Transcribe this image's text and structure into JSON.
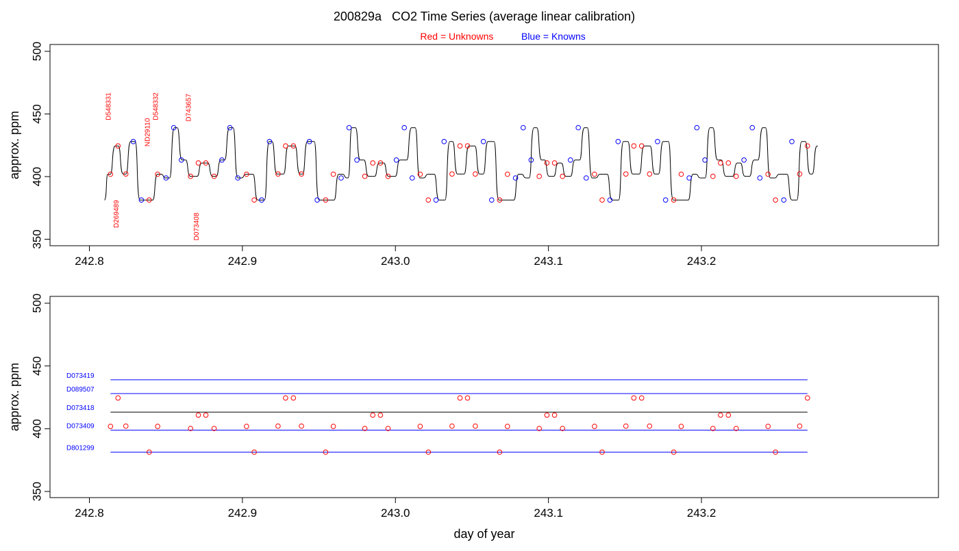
{
  "figure": {
    "title": "200829a   CO2 Time Series (average linear calibration)",
    "legend": {
      "red_word": "Red",
      "red_rest": " = Unknowns",
      "blue_word": "Blue",
      "blue_rest": " = Knowns",
      "placement": "top-center"
    },
    "xlabel": "day of year",
    "colors": {
      "unknown": "#ff0000",
      "known": "#0000ff",
      "trace": "#000000",
      "frame": "#000000"
    }
  },
  "chart_data": [
    {
      "type": "line",
      "panel": "top",
      "ylabel": "approx. ppm",
      "xlim": [
        242.8,
        243.25
      ],
      "ylim": [
        350,
        500
      ],
      "x_ticks": [
        "242.8",
        "242.9",
        "243.0",
        "243.1",
        "243.2"
      ],
      "y_ticks": [
        "350",
        "400",
        "450",
        "500"
      ],
      "grid": false,
      "series": [
        {
          "role": "trace",
          "color": "#000000",
          "segments": [
            [
              242.8098,
              381.3
            ],
            [
              242.8125,
              401.9
            ],
            [
              242.8173,
              424.5
            ],
            [
              242.8225,
              402.1
            ],
            [
              242.8275,
              428.0
            ],
            [
              242.8335,
              381.3
            ],
            [
              242.841,
              381.3
            ],
            [
              242.845,
              401.9
            ],
            [
              242.8505,
              398.9
            ],
            [
              242.856,
              439.0
            ],
            [
              242.861,
              413.2
            ],
            [
              242.8665,
              400.2
            ],
            [
              242.874,
              410.9
            ],
            [
              242.881,
              400.2
            ],
            [
              242.8865,
              413.2
            ],
            [
              242.892,
              439.0
            ],
            [
              242.8975,
              398.9
            ],
            [
              242.903,
              401.9
            ],
            [
              242.9105,
              381.3
            ],
            [
              242.918,
              428.0
            ],
            [
              242.923,
              402.1
            ],
            [
              242.9305,
              424.5
            ],
            [
              242.938,
              402.1
            ],
            [
              242.943,
              428.0
            ],
            [
              242.9505,
              381.3
            ],
            [
              242.958,
              381.3
            ],
            [
              242.9635,
              401.9
            ],
            [
              242.969,
              398.9
            ],
            [
              242.972,
              439.0
            ],
            [
              242.9775,
              413.2
            ],
            [
              242.983,
              400.2
            ],
            [
              242.99,
              410.9
            ],
            [
              242.996,
              400.2
            ],
            [
              243.0035,
              413.2
            ],
            [
              243.011,
              439.0
            ],
            [
              243.0165,
              398.9
            ],
            [
              243.022,
              401.9
            ],
            [
              243.029,
              381.3
            ],
            [
              243.036,
              428.0
            ],
            [
              243.041,
              402.1
            ],
            [
              243.0485,
              424.5
            ],
            [
              243.0555,
              402.1
            ],
            [
              243.061,
              428.0
            ],
            [
              243.068,
              381.3
            ],
            [
              243.0755,
              381.3
            ],
            [
              243.081,
              401.9
            ],
            [
              243.086,
              398.9
            ],
            [
              243.091,
              439.0
            ],
            [
              243.096,
              413.2
            ],
            [
              243.101,
              400.2
            ],
            [
              243.107,
              410.9
            ],
            [
              243.112,
              400.2
            ],
            [
              243.118,
              413.2
            ],
            [
              243.124,
              439.0
            ],
            [
              243.129,
              398.9
            ],
            [
              243.1345,
              401.9
            ],
            [
              243.142,
              381.3
            ],
            [
              243.1495,
              428.0
            ],
            [
              243.1555,
              402.1
            ],
            [
              243.163,
              424.5
            ],
            [
              243.17,
              402.1
            ],
            [
              243.1755,
              428.0
            ],
            [
              243.182,
              381.3
            ],
            [
              243.1895,
              381.3
            ],
            [
              243.195,
              401.9
            ],
            [
              243.2,
              398.9
            ],
            [
              243.206,
              439.0
            ],
            [
              243.211,
              413.2
            ],
            [
              243.2165,
              400.2
            ],
            [
              243.224,
              410.9
            ],
            [
              243.229,
              400.2
            ],
            [
              243.235,
              413.2
            ],
            [
              243.2405,
              439.0
            ],
            [
              243.2455,
              398.9
            ],
            [
              243.2515,
              401.9
            ],
            [
              243.2595,
              381.3
            ],
            [
              243.266,
              428.0
            ],
            [
              243.2715,
              402.1
            ],
            [
              243.276,
              424.5
            ]
          ]
        },
        {
          "role": "unknowns",
          "name": "Unknowns",
          "color": "#ff0000",
          "points": [
            [
              242.8138,
              401.9
            ],
            [
              242.8187,
              424.5
            ],
            [
              242.8238,
              402.1
            ],
            [
              242.8391,
              381.3
            ],
            [
              242.8446,
              401.9
            ],
            [
              242.8661,
              400.2
            ],
            [
              242.8712,
              410.9
            ],
            [
              242.8761,
              410.9
            ],
            [
              242.8815,
              400.2
            ],
            [
              242.9027,
              401.9
            ],
            [
              242.9077,
              381.3
            ],
            [
              242.9233,
              402.1
            ],
            [
              242.9282,
              424.5
            ],
            [
              242.9333,
              424.5
            ],
            [
              242.9386,
              402.1
            ],
            [
              242.9544,
              381.3
            ],
            [
              242.9594,
              401.9
            ],
            [
              242.98,
              400.2
            ],
            [
              242.9852,
              410.9
            ],
            [
              242.9902,
              410.9
            ],
            [
              242.9952,
              400.2
            ],
            [
              243.0162,
              401.9
            ],
            [
              243.0215,
              381.3
            ],
            [
              243.037,
              402.1
            ],
            [
              243.0422,
              424.5
            ],
            [
              243.0471,
              424.5
            ],
            [
              243.0522,
              402.1
            ],
            [
              243.0681,
              381.3
            ],
            [
              243.0732,
              401.9
            ],
            [
              243.094,
              400.2
            ],
            [
              243.099,
              410.9
            ],
            [
              243.104,
              410.9
            ],
            [
              243.1092,
              400.2
            ],
            [
              243.1301,
              401.9
            ],
            [
              243.1351,
              381.3
            ],
            [
              243.1506,
              402.1
            ],
            [
              243.1558,
              424.5
            ],
            [
              243.1609,
              424.5
            ],
            [
              243.1661,
              402.1
            ],
            [
              243.1819,
              381.3
            ],
            [
              243.1868,
              401.9
            ],
            [
              243.2075,
              400.2
            ],
            [
              243.2125,
              410.9
            ],
            [
              243.2176,
              410.9
            ],
            [
              243.2227,
              400.2
            ],
            [
              243.2435,
              401.9
            ],
            [
              243.2484,
              381.3
            ],
            [
              243.2642,
              402.1
            ],
            [
              243.2693,
              424.5
            ]
          ]
        },
        {
          "role": "knowns",
          "name": "Knowns",
          "color": "#0000ff",
          "points": [
            [
              242.8287,
              428.0
            ],
            [
              242.834,
              381.3
            ],
            [
              242.8501,
              398.9
            ],
            [
              242.8551,
              439.0
            ],
            [
              242.8601,
              413.2
            ],
            [
              242.8866,
              413.2
            ],
            [
              242.8918,
              439.0
            ],
            [
              242.897,
              398.9
            ],
            [
              242.9126,
              381.3
            ],
            [
              242.9177,
              428.0
            ],
            [
              242.9438,
              428.0
            ],
            [
              242.9489,
              381.3
            ],
            [
              242.9645,
              398.9
            ],
            [
              242.9697,
              439.0
            ],
            [
              242.9748,
              413.2
            ],
            [
              243.0006,
              413.2
            ],
            [
              243.0058,
              439.0
            ],
            [
              243.011,
              398.9
            ],
            [
              243.0265,
              381.3
            ],
            [
              243.0318,
              428.0
            ],
            [
              243.0575,
              428.0
            ],
            [
              243.0629,
              381.3
            ],
            [
              243.0785,
              398.9
            ],
            [
              243.0835,
              439.0
            ],
            [
              243.0887,
              413.2
            ],
            [
              243.1144,
              413.2
            ],
            [
              243.1195,
              439.0
            ],
            [
              243.1247,
              398.9
            ],
            [
              243.1402,
              381.3
            ],
            [
              243.1455,
              428.0
            ],
            [
              243.1713,
              428.0
            ],
            [
              243.1766,
              381.3
            ],
            [
              243.192,
              398.9
            ],
            [
              243.197,
              439.0
            ],
            [
              243.2023,
              413.2
            ],
            [
              243.2278,
              413.2
            ],
            [
              243.2332,
              439.0
            ],
            [
              243.2382,
              398.9
            ],
            [
              243.2538,
              381.3
            ],
            [
              243.2591,
              428.0
            ]
          ]
        }
      ],
      "annotations": [
        {
          "text": "D548331",
          "x": 242.814,
          "y": 445,
          "color": "#ff0000",
          "rotation": -90
        },
        {
          "text": "D269489",
          "x": 242.819,
          "y": 359,
          "color": "#ff0000",
          "rotation": -90
        },
        {
          "text": "ND29110",
          "x": 242.8395,
          "y": 424,
          "color": "#ff0000",
          "rotation": -90
        },
        {
          "text": "D548332",
          "x": 242.8448,
          "y": 445,
          "color": "#ff0000",
          "rotation": -90
        },
        {
          "text": "D743657",
          "x": 242.8662,
          "y": 444,
          "color": "#ff0000",
          "rotation": -90
        },
        {
          "text": "D073408",
          "x": 242.8713,
          "y": 349,
          "color": "#ff0000",
          "rotation": -90
        }
      ]
    },
    {
      "type": "scatter",
      "panel": "bottom",
      "ylabel": "approx. ppm",
      "xlim": [
        242.8,
        243.25
      ],
      "ylim": [
        350,
        500
      ],
      "x_ticks": [
        "242.8",
        "242.9",
        "243.0",
        "243.1",
        "243.2"
      ],
      "y_ticks": [
        "350",
        "400",
        "450",
        "500"
      ],
      "grid": false,
      "reference_lines": [
        {
          "label": "D073419",
          "value": 439.0,
          "color": "#0000ff"
        },
        {
          "label": "D089507",
          "value": 428.0,
          "color": "#0000ff"
        },
        {
          "label": "D073418",
          "value": 413.2,
          "color": "#0000ff",
          "line_color": "#000000"
        },
        {
          "label": "D073409",
          "value": 398.9,
          "color": "#0000ff"
        },
        {
          "label": "D801299",
          "value": 381.3,
          "color": "#0000ff"
        }
      ],
      "reference_x_range": [
        242.8138,
        243.2693
      ],
      "series": [
        {
          "role": "unknowns",
          "name": "Unknowns",
          "color": "#ff0000",
          "points": [
            [
              242.8138,
              401.9
            ],
            [
              242.8187,
              424.5
            ],
            [
              242.8238,
              402.1
            ],
            [
              242.8391,
              381.3
            ],
            [
              242.8446,
              401.9
            ],
            [
              242.8661,
              400.2
            ],
            [
              242.8712,
              410.9
            ],
            [
              242.8761,
              410.9
            ],
            [
              242.8815,
              400.2
            ],
            [
              242.9027,
              401.9
            ],
            [
              242.9077,
              381.3
            ],
            [
              242.9233,
              402.1
            ],
            [
              242.9282,
              424.5
            ],
            [
              242.9333,
              424.5
            ],
            [
              242.9386,
              402.1
            ],
            [
              242.9544,
              381.3
            ],
            [
              242.9594,
              401.9
            ],
            [
              242.98,
              400.2
            ],
            [
              242.9852,
              410.9
            ],
            [
              242.9902,
              410.9
            ],
            [
              242.9952,
              400.2
            ],
            [
              243.0162,
              401.9
            ],
            [
              243.0215,
              381.3
            ],
            [
              243.037,
              402.1
            ],
            [
              243.0422,
              424.5
            ],
            [
              243.0471,
              424.5
            ],
            [
              243.0522,
              402.1
            ],
            [
              243.0681,
              381.3
            ],
            [
              243.0732,
              401.9
            ],
            [
              243.094,
              400.2
            ],
            [
              243.099,
              410.9
            ],
            [
              243.104,
              410.9
            ],
            [
              243.1092,
              400.2
            ],
            [
              243.1301,
              401.9
            ],
            [
              243.1351,
              381.3
            ],
            [
              243.1506,
              402.1
            ],
            [
              243.1558,
              424.5
            ],
            [
              243.1609,
              424.5
            ],
            [
              243.1661,
              402.1
            ],
            [
              243.1819,
              381.3
            ],
            [
              243.1868,
              401.9
            ],
            [
              243.2075,
              400.2
            ],
            [
              243.2125,
              410.9
            ],
            [
              243.2176,
              410.9
            ],
            [
              243.2227,
              400.2
            ],
            [
              243.2435,
              401.9
            ],
            [
              243.2484,
              381.3
            ],
            [
              243.2642,
              402.1
            ],
            [
              243.2693,
              424.5
            ]
          ]
        }
      ]
    }
  ]
}
